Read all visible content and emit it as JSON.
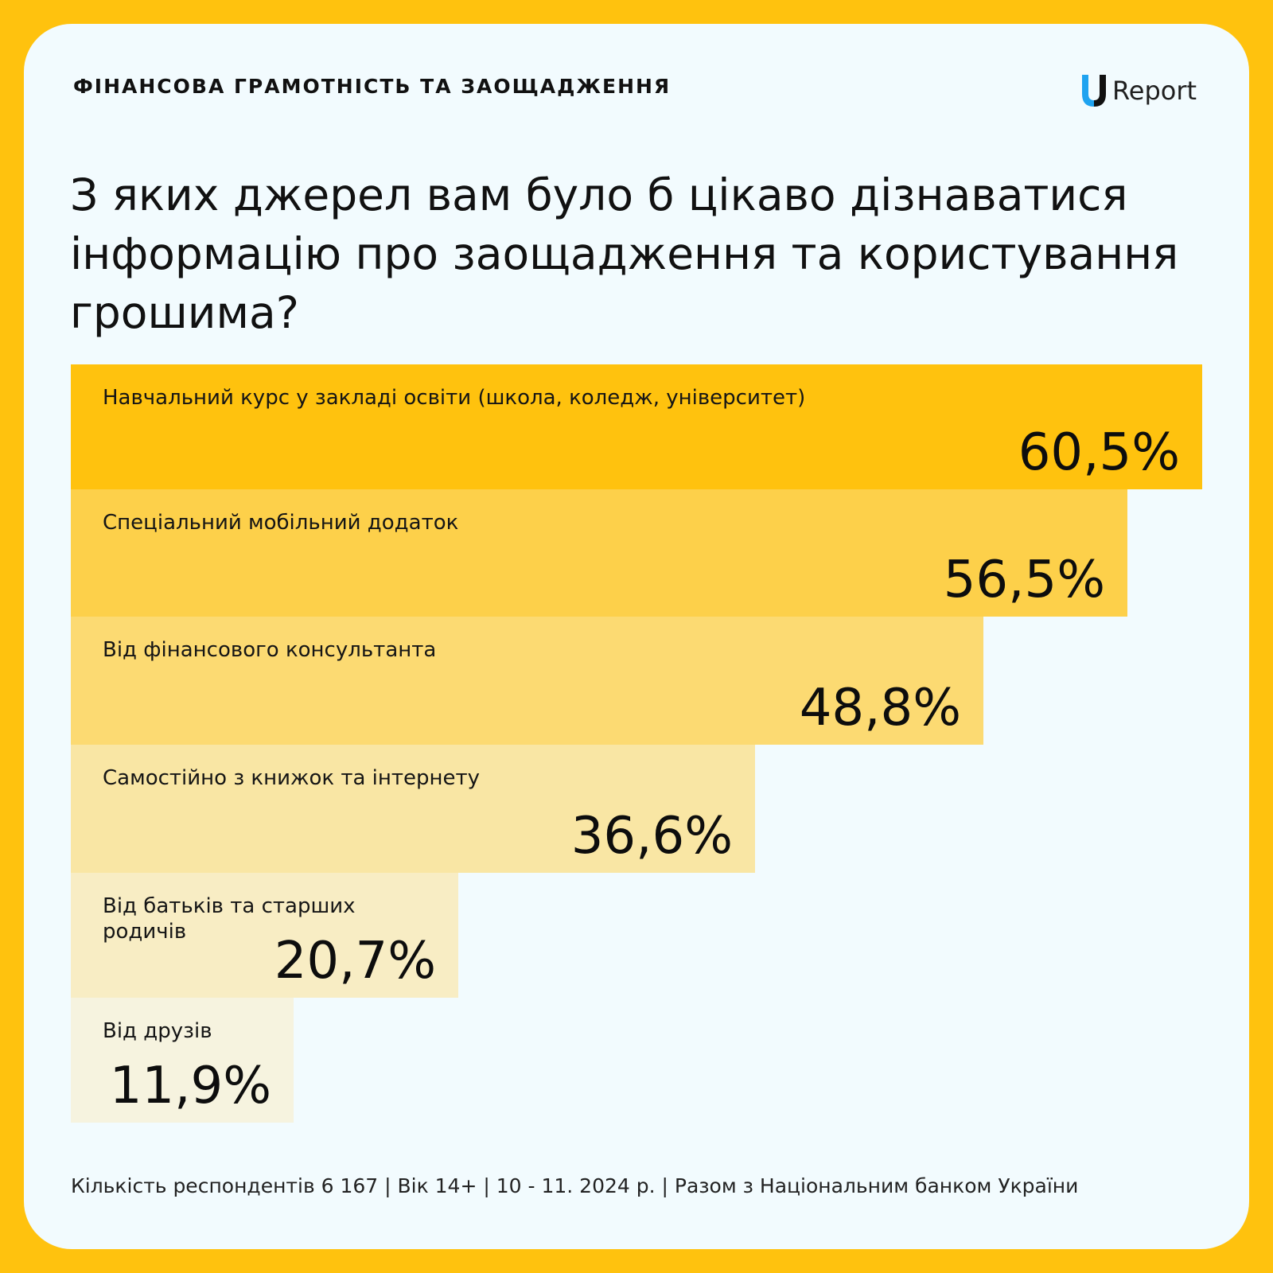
{
  "header": {
    "category": "ФІНАНСОВА ГРАМОТНІСТЬ ТА ЗАОЩАДЖЕННЯ",
    "logo_text": "Report"
  },
  "title": "З яких джерел вам було б цікаво дізнаватися інформацію про заощадження та користування грошима?",
  "colors": {
    "background": "#FFC20E",
    "card": "#F2FBFE",
    "bars": [
      "#FFC20E",
      "#FDD04A",
      "#FCDA72",
      "#F9E6A4",
      "#F8EDC4",
      "#F6F3DF"
    ]
  },
  "chart_data": {
    "type": "bar",
    "orientation": "horizontal",
    "categories": [
      "Навчальний курс у закладі освіти (школа, коледж, університет)",
      "Спеціальний мобільний додаток",
      "Від фінансового консультанта",
      "Самостійно з книжок та інтернету",
      "Від батьків та старших родичів",
      "Від друзів"
    ],
    "values": [
      60.5,
      56.5,
      48.8,
      36.6,
      20.7,
      11.9
    ],
    "value_labels": [
      "60,5%",
      "56,5%",
      "48,8%",
      "36,6%",
      "20,7%",
      "11,9%"
    ],
    "title": "З яких джерел вам було б цікаво дізнаватися інформацію про заощадження та користування грошима?",
    "xlabel": "",
    "ylabel": "",
    "grid": false
  },
  "footer": "Кількість респондентів 6 167 | Вік 14+ | 10 - 11. 2024 р. | Разом з Національним банком України"
}
